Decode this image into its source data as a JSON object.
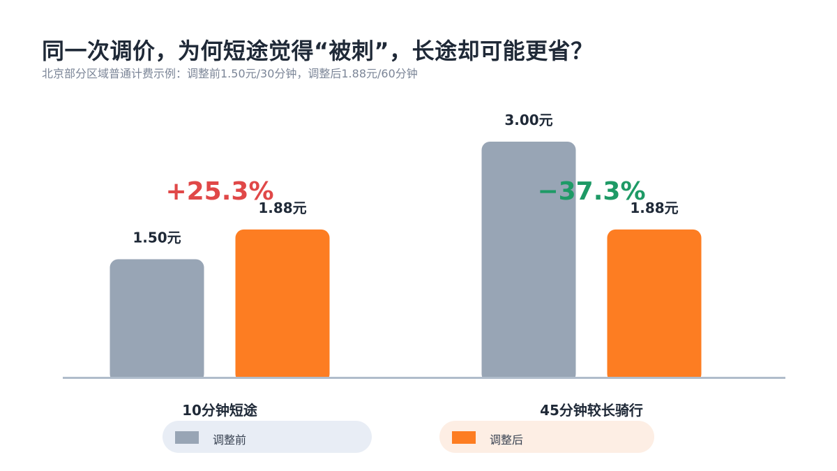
{
  "title": "同一次调价，为何短途觉得“被刺”，长途却可能更省？",
  "subtitle": "北京部分区域普通计费示例：调整前1.50元/30分钟，调整后1.88元/60分钟",
  "legend": {
    "before_label": "调整前",
    "after_label": "调整后"
  },
  "colors": {
    "before": "#98a5b5",
    "after": "#fd7d22",
    "increase": "#e04848",
    "decrease": "#1e9a66",
    "axis": "#b0bccb",
    "label": "#1f2937"
  },
  "chart_data": {
    "type": "bar",
    "categories": [
      "10分钟短途",
      "45分钟较长骑行"
    ],
    "series": [
      {
        "name": "调整前",
        "values": [
          1.5,
          3.0
        ],
        "labels": [
          "1.50元",
          "3.00元"
        ]
      },
      {
        "name": "调整后",
        "values": [
          1.88,
          1.88
        ],
        "labels": [
          "1.88元",
          "1.88元"
        ]
      }
    ],
    "annotations": [
      "+25.3%",
      "−37.3%"
    ],
    "ylim": [
      0,
      3.0
    ],
    "grid": false,
    "legend_position": "bottom"
  }
}
